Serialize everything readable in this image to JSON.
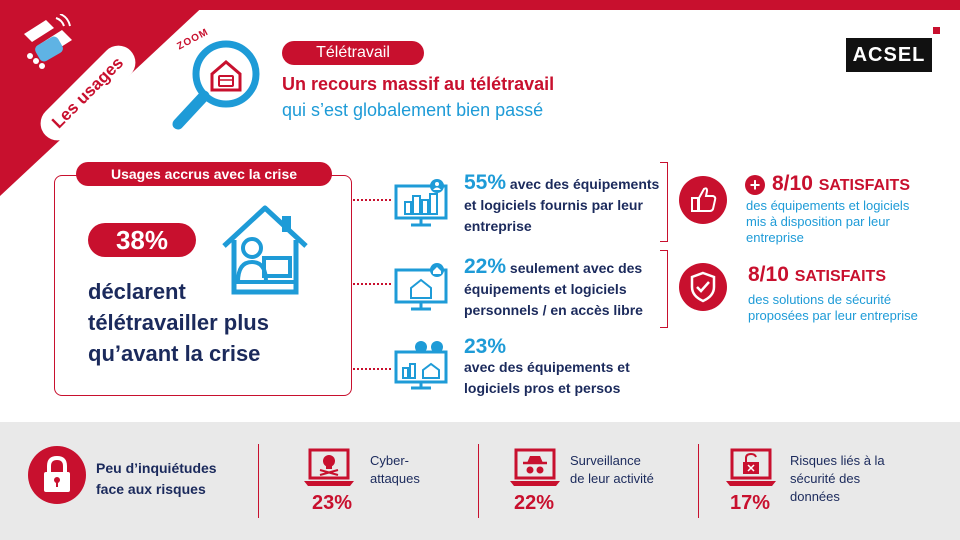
{
  "corner": {
    "label": "Les usages"
  },
  "zoom": {
    "word": "ZOOM"
  },
  "header": {
    "tag": "Télétravail",
    "headline": "Un recours massif au télétravail",
    "subline": "qui s’est globalement bien passé"
  },
  "logo": {
    "text": "ACSEL"
  },
  "left": {
    "tag": "Usages accrus avec la crise",
    "percent": "38%",
    "line1": "déclarent",
    "line2": "télétravailler plus",
    "line3": "qu’avant la crise"
  },
  "middle": {
    "items": [
      {
        "pct": "55%",
        "text1": " avec des équipements",
        "text2": "et logiciels fournis par leur",
        "text3": "entreprise"
      },
      {
        "pct": "22%",
        "text1": " seulement avec des",
        "text2": "équipements et logiciels",
        "text3": "personnels / en accès libre"
      },
      {
        "pct": "23%",
        "text1": "avec des équipements et",
        "text2": "logiciels pros et persos"
      }
    ]
  },
  "right": {
    "items": [
      {
        "big": "8/10",
        "word": "SATISFAITS",
        "sub1": "des équipements et logiciels",
        "sub2": "mis à disposition par leur",
        "sub3": "entreprise"
      },
      {
        "big": "8/10",
        "word": "SATISFAITS",
        "sub1": "des solutions de sécurité",
        "sub2": "proposées par leur entreprise"
      }
    ]
  },
  "bottom": {
    "title1": "Peu d’inquiétudes",
    "title2": "face aux risques",
    "risks": [
      {
        "label1": "Cyber-",
        "label2": "attaques",
        "pct": "23%"
      },
      {
        "label1": "Surveillance",
        "label2": "de leur activité",
        "pct": "22%"
      },
      {
        "label1": "Risques liés à la",
        "label2": "sécurité des",
        "label3": "données",
        "pct": "17%"
      }
    ]
  },
  "colors": {
    "red": "#c8102e",
    "blue": "#1e9bd7",
    "navy": "#1b2a5c",
    "band": "#e9e9e9"
  }
}
